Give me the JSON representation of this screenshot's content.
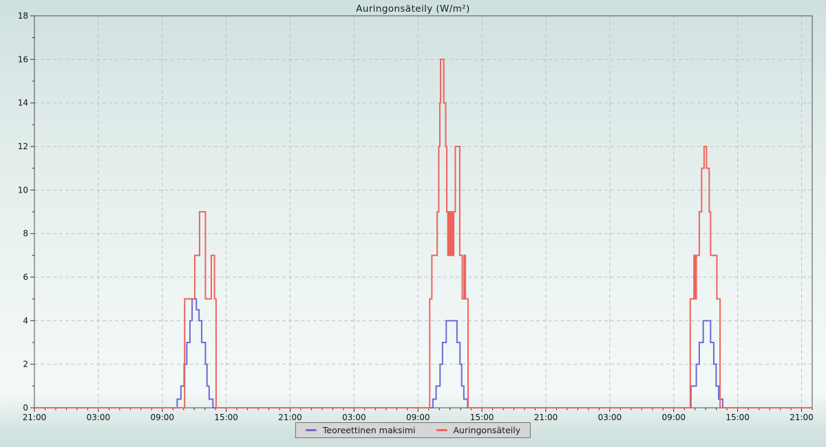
{
  "title": "Auringonsäteily (W/m²)",
  "legend": {
    "items": [
      {
        "label": "Teoreettinen maksimi",
        "color": "#6a6ad2"
      },
      {
        "label": "Auringonsäteily",
        "color": "#f0625c"
      }
    ]
  },
  "colors": {
    "background_top": "#cddfde",
    "background_bottom": "#f2f8f7",
    "frame": "#4c4c4c",
    "grid": "#b9c3c2",
    "text": "#111111"
  },
  "chart_data": {
    "type": "line",
    "line_style": "step-after",
    "title": "Auringonsäteily (W/m²)",
    "xlabel": "",
    "ylabel": "",
    "x_unit": "hours elapsed from 21:00, 3-day span",
    "xlim": [
      0,
      73
    ],
    "ylim": [
      0,
      18
    ],
    "grid": "dashed",
    "legend_position": "bottom-center",
    "x_axis": {
      "major_tick_every_hours": 6,
      "minor_tick_every_hours": 1,
      "ticks": [
        {
          "hour": 0,
          "label": "21:00"
        },
        {
          "hour": 6,
          "label": "03:00"
        },
        {
          "hour": 12,
          "label": "09:00"
        },
        {
          "hour": 18,
          "label": "15:00"
        },
        {
          "hour": 24,
          "label": "21:00"
        },
        {
          "hour": 30,
          "label": "03:00"
        },
        {
          "hour": 36,
          "label": "09:00"
        },
        {
          "hour": 42,
          "label": "15:00"
        },
        {
          "hour": 48,
          "label": "21:00"
        },
        {
          "hour": 54,
          "label": "03:00"
        },
        {
          "hour": 60,
          "label": "09:00"
        },
        {
          "hour": 66,
          "label": "15:00"
        },
        {
          "hour": 72,
          "label": "21:00"
        }
      ]
    },
    "y_axis": {
      "major_ticks": [
        0,
        2,
        4,
        6,
        8,
        10,
        12,
        14,
        16,
        18
      ],
      "minor_tick_step": 1
    },
    "series": [
      {
        "name": "Teoreettinen maksimi",
        "color": "#6a6ad2",
        "points": [
          [
            0,
            0
          ],
          [
            13.4,
            0.4
          ],
          [
            13.75,
            1
          ],
          [
            14.05,
            2
          ],
          [
            14.3,
            3
          ],
          [
            14.6,
            4
          ],
          [
            14.8,
            5
          ],
          [
            15.2,
            4.5
          ],
          [
            15.45,
            4
          ],
          [
            15.7,
            3
          ],
          [
            16.05,
            2
          ],
          [
            16.2,
            1
          ],
          [
            16.4,
            0.4
          ],
          [
            16.75,
            0
          ],
          [
            37.4,
            0.4
          ],
          [
            37.7,
            1
          ],
          [
            38.07,
            2
          ],
          [
            38.3,
            3
          ],
          [
            38.65,
            4
          ],
          [
            39.66,
            3
          ],
          [
            39.94,
            2
          ],
          [
            40.1,
            1
          ],
          [
            40.3,
            0.4
          ],
          [
            40.65,
            0
          ],
          [
            61.62,
            1
          ],
          [
            62.12,
            2
          ],
          [
            62.4,
            3
          ],
          [
            62.77,
            4
          ],
          [
            63.46,
            3
          ],
          [
            63.76,
            2
          ],
          [
            63.98,
            1
          ],
          [
            64.22,
            0.4
          ],
          [
            64.6,
            0
          ]
        ]
      },
      {
        "name": "Auringonsäteily",
        "color": "#f0625c",
        "points": [
          [
            0,
            0
          ],
          [
            14.1,
            5
          ],
          [
            15.05,
            7
          ],
          [
            15.5,
            9
          ],
          [
            16.05,
            5
          ],
          [
            16.6,
            7
          ],
          [
            16.9,
            5
          ],
          [
            17.05,
            0
          ],
          [
            37.1,
            5
          ],
          [
            37.3,
            7
          ],
          [
            37.8,
            9
          ],
          [
            37.95,
            12
          ],
          [
            38.05,
            14
          ],
          [
            38.12,
            16
          ],
          [
            38.42,
            14
          ],
          [
            38.6,
            12
          ],
          [
            38.7,
            9
          ],
          [
            38.8,
            7
          ],
          [
            38.92,
            9
          ],
          [
            39.02,
            7
          ],
          [
            39.12,
            9
          ],
          [
            39.22,
            7
          ],
          [
            39.35,
            9
          ],
          [
            39.5,
            12
          ],
          [
            39.92,
            7
          ],
          [
            40.15,
            5
          ],
          [
            40.32,
            7
          ],
          [
            40.45,
            5
          ],
          [
            40.7,
            0
          ],
          [
            61.55,
            5
          ],
          [
            61.9,
            7
          ],
          [
            62.0,
            5
          ],
          [
            62.12,
            7
          ],
          [
            62.4,
            9
          ],
          [
            62.62,
            11
          ],
          [
            62.85,
            12
          ],
          [
            63.08,
            11
          ],
          [
            63.33,
            9
          ],
          [
            63.46,
            7
          ],
          [
            64.05,
            5
          ],
          [
            64.35,
            0
          ]
        ]
      }
    ]
  }
}
